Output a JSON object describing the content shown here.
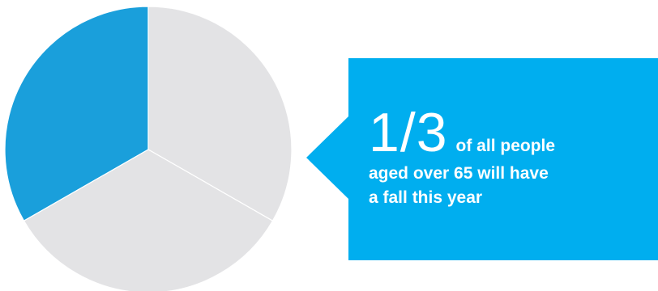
{
  "chart_data": {
    "type": "pie",
    "slices": [
      {
        "label": "",
        "value": 33.3,
        "color": "#1A9FDB"
      },
      {
        "label": "",
        "value": 33.3,
        "color": "#E3E3E5"
      },
      {
        "label": "",
        "value": 33.4,
        "color": "#E3E3E5"
      }
    ]
  },
  "callout": {
    "color": "#00AEEF",
    "fraction": "1/3",
    "lead_text": "of all people",
    "lines": [
      "aged over 65 will have",
      "a fall this year"
    ]
  }
}
